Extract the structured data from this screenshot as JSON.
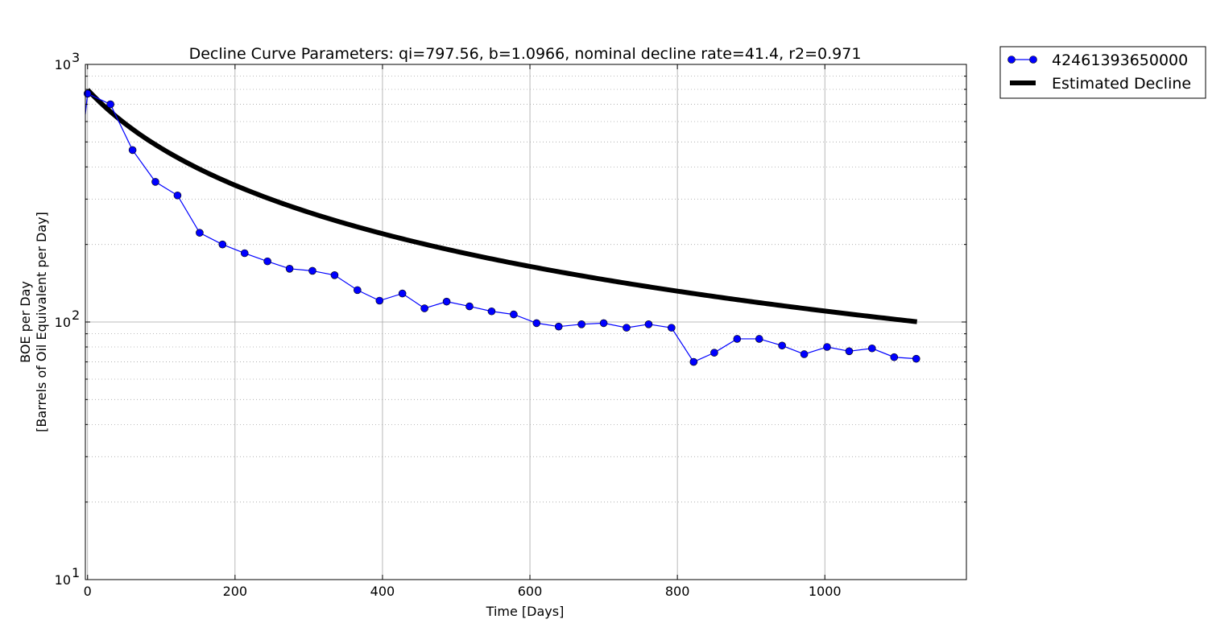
{
  "chart_data": {
    "type": "line",
    "title": "Decline Curve Parameters: qi=797.56, b=1.0966, nominal decline rate=41.4, r2=0.971",
    "xlabel": "Time [Days]",
    "ylabel_line1": "BOE per Day",
    "ylabel_line2": "[Barrels of Oil Equivalent per Day]",
    "xlim": [
      -3,
      1192
    ],
    "ylim": [
      10,
      1000
    ],
    "yscale": "log",
    "grid": true,
    "legend_position": "outside-top-right",
    "x_ticks": [
      0,
      200,
      400,
      600,
      800,
      1000
    ],
    "y_ticks": [
      {
        "value": 10,
        "base": "10",
        "exp": "1"
      },
      {
        "value": 100,
        "base": "10",
        "exp": "2"
      },
      {
        "value": 1000,
        "base": "10",
        "exp": "3"
      }
    ],
    "series": [
      {
        "name": "42461393650000",
        "color": "#0000ff",
        "style": "line-marker",
        "x": [
          -3,
          0,
          31,
          61,
          92,
          122,
          152,
          183,
          213,
          244,
          274,
          305,
          335,
          366,
          396,
          427,
          457,
          487,
          518,
          548,
          578,
          609,
          639,
          670,
          700,
          731,
          761,
          792,
          822,
          850,
          881,
          911,
          942,
          972,
          1003,
          1033,
          1064,
          1094,
          1124
        ],
        "y": [
          640,
          770,
          700,
          465,
          350,
          310,
          222,
          200,
          185,
          172,
          161,
          158,
          152,
          133,
          121,
          129,
          113,
          120,
          115,
          110,
          107,
          99,
          96,
          98,
          99,
          95,
          98,
          95,
          70,
          76,
          86,
          86,
          81,
          75,
          80,
          77,
          79,
          73,
          72
        ]
      },
      {
        "name": "Estimated Decline",
        "color": "#000000",
        "style": "thick-line",
        "qi": 797.56,
        "b": 1.0966,
        "x_range": [
          0,
          1125
        ]
      }
    ]
  }
}
